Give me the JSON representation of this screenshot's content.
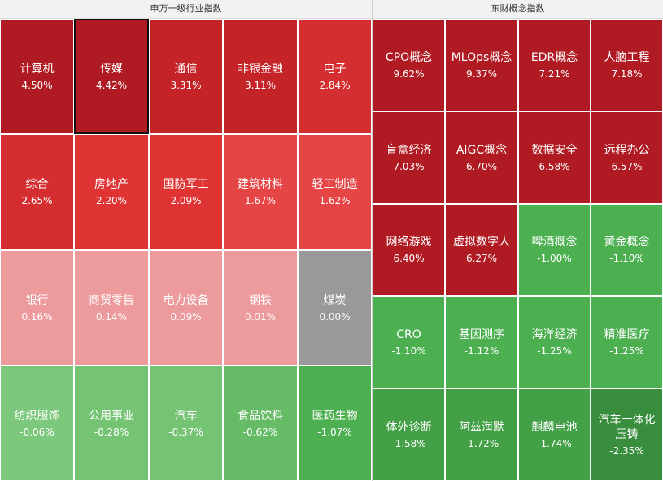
{
  "chart_data": [
    {
      "type": "heatmap",
      "title": "申万一级行业指数",
      "colors": {
        "strong_up": "#b01a22",
        "up": "#d42e30",
        "mid_up": "#e3403f",
        "weak_up": "#ea9a9c",
        "flat": "#999999",
        "weak_down": "#7ec97e",
        "down": "#4caf50",
        "strong_down": "#388e3c"
      },
      "tiles": [
        {
          "name": "计算机",
          "value": "4.50%",
          "color": "#b01a22"
        },
        {
          "name": "传媒",
          "value": "4.42%",
          "color": "#b01a22",
          "selected": true
        },
        {
          "name": "通信",
          "value": "3.31%",
          "color": "#c42328"
        },
        {
          "name": "非银金融",
          "value": "3.11%",
          "color": "#c42328"
        },
        {
          "name": "电子",
          "value": "2.84%",
          "color": "#d42e30"
        },
        {
          "name": "综合",
          "value": "2.65%",
          "color": "#d42e30"
        },
        {
          "name": "房地产",
          "value": "2.20%",
          "color": "#e03434"
        },
        {
          "name": "国防军工",
          "value": "2.09%",
          "color": "#e03434"
        },
        {
          "name": "建筑材料",
          "value": "1.67%",
          "color": "#e64545"
        },
        {
          "name": "轻工制造",
          "value": "1.62%",
          "color": "#e64545"
        },
        {
          "name": "银行",
          "value": "0.16%",
          "color": "#ec9a9c"
        },
        {
          "name": "商贸零售",
          "value": "0.14%",
          "color": "#ec9a9c"
        },
        {
          "name": "电力设备",
          "value": "0.09%",
          "color": "#ec9a9c"
        },
        {
          "name": "钢铁",
          "value": "0.01%",
          "color": "#ec9a9c"
        },
        {
          "name": "煤炭",
          "value": "0.00%",
          "color": "#999999"
        },
        {
          "name": "纺织服饰",
          "value": "-0.06%",
          "color": "#7cc87c"
        },
        {
          "name": "公用事业",
          "value": "-0.28%",
          "color": "#74c474"
        },
        {
          "name": "汽车",
          "value": "-0.37%",
          "color": "#74c474"
        },
        {
          "name": "食品饮料",
          "value": "-0.62%",
          "color": "#66bc66"
        },
        {
          "name": "医药生物",
          "value": "-1.07%",
          "color": "#4caf50"
        }
      ]
    },
    {
      "type": "heatmap",
      "title": "东财概念指数",
      "tiles": [
        {
          "name": "CPO概念",
          "value": "9.62%",
          "color": "#b01a22"
        },
        {
          "name": "MLOps概念",
          "value": "9.37%",
          "color": "#b01a22"
        },
        {
          "name": "EDR概念",
          "value": "7.21%",
          "color": "#b01a22"
        },
        {
          "name": "人脑工程",
          "value": "7.18%",
          "color": "#b01a22"
        },
        {
          "name": "盲盒经济",
          "value": "7.03%",
          "color": "#b01a22"
        },
        {
          "name": "AIGC概念",
          "value": "6.70%",
          "color": "#b01a22"
        },
        {
          "name": "数据安全",
          "value": "6.58%",
          "color": "#b01a22"
        },
        {
          "name": "远程办公",
          "value": "6.57%",
          "color": "#b01a22"
        },
        {
          "name": "网络游戏",
          "value": "6.40%",
          "color": "#b01a22"
        },
        {
          "name": "虚拟数字人",
          "value": "6.27%",
          "color": "#b01a22"
        },
        {
          "name": "啤酒概念",
          "value": "-1.00%",
          "color": "#4caf50"
        },
        {
          "name": "黄金概念",
          "value": "-1.10%",
          "color": "#4caf50"
        },
        {
          "name": "CRO",
          "value": "-1.10%",
          "color": "#4caf50"
        },
        {
          "name": "基因测序",
          "value": "-1.12%",
          "color": "#4caf50"
        },
        {
          "name": "海洋经济",
          "value": "-1.25%",
          "color": "#4caf50"
        },
        {
          "name": "精准医疗",
          "value": "-1.25%",
          "color": "#4caf50"
        },
        {
          "name": "体外诊断",
          "value": "-1.58%",
          "color": "#43a047"
        },
        {
          "name": "阿兹海默",
          "value": "-1.72%",
          "color": "#43a047"
        },
        {
          "name": "麒麟电池",
          "value": "-1.74%",
          "color": "#43a047"
        },
        {
          "name": "汽车一体化压铸",
          "value": "-2.35%",
          "color": "#388e3c"
        }
      ]
    }
  ]
}
